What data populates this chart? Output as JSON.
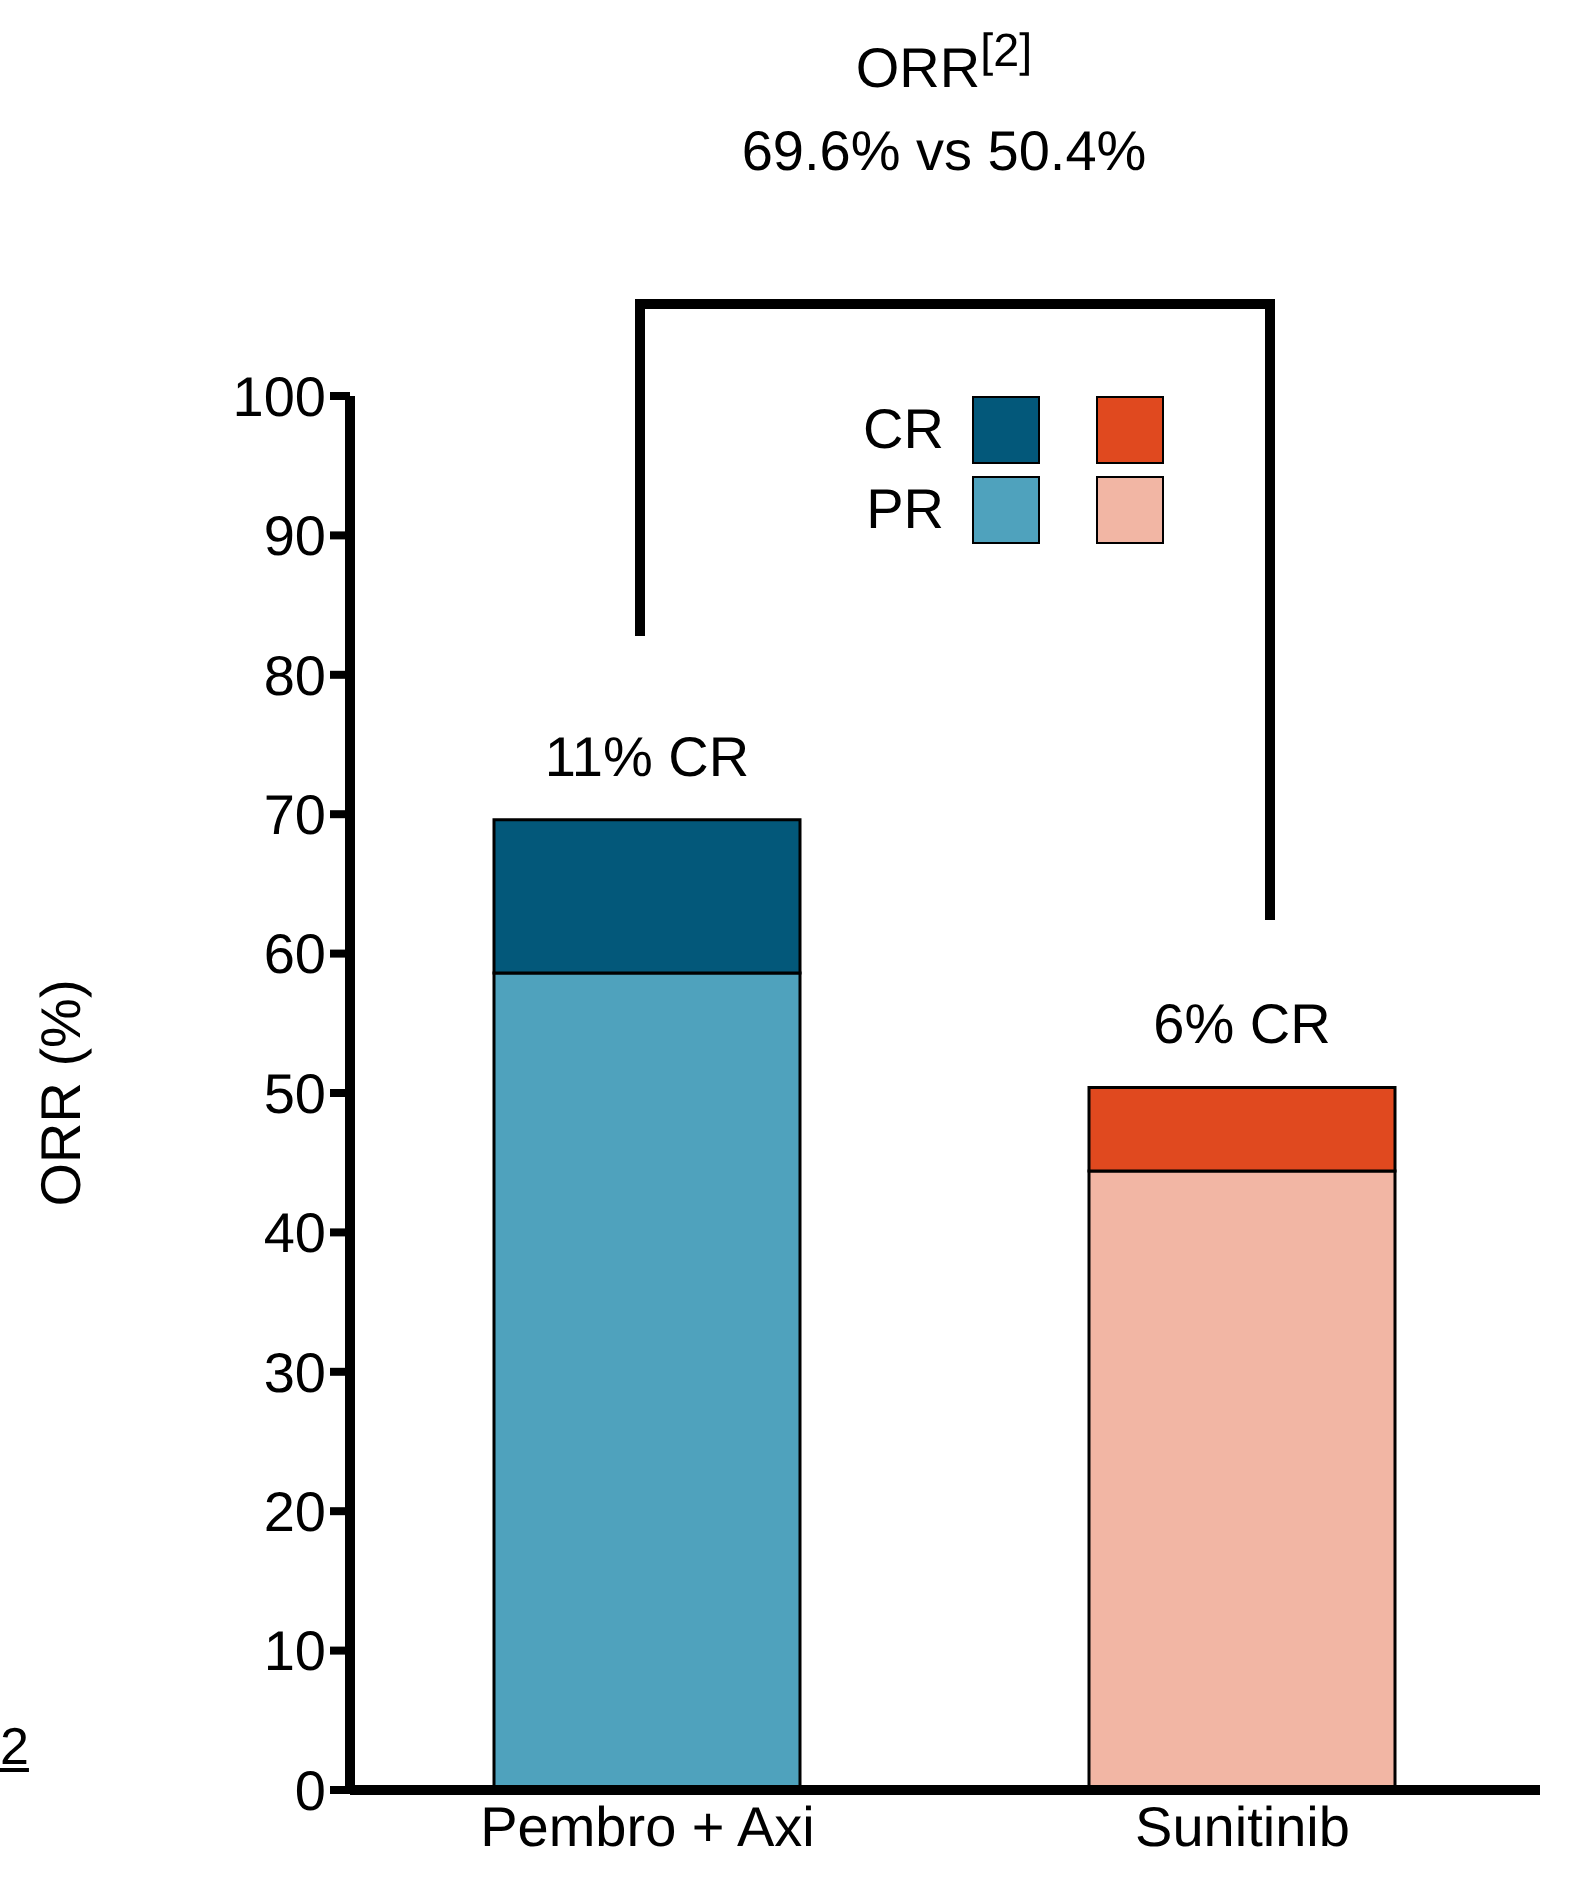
{
  "chart_data": {
    "type": "bar",
    "stacked": true,
    "ylabel": "ORR (%)",
    "categories": [
      "Pembro + Axi",
      "Sunitinib"
    ],
    "series": [
      {
        "name": "PR",
        "colors": [
          "#4fa2bd",
          "#f2b6a4"
        ],
        "values": [
          58.6,
          44.4
        ]
      },
      {
        "name": "CR",
        "colors": [
          "#03587a",
          "#e0491f"
        ],
        "values": [
          11,
          6
        ],
        "value_labels": [
          "11% CR",
          "6% CR"
        ]
      }
    ],
    "ylim": [
      0,
      100
    ],
    "yticks": [
      0,
      10,
      20,
      30,
      40,
      50,
      60,
      70,
      80,
      90,
      100
    ],
    "grid": false,
    "legend": "top right",
    "annotations": [
      "ORR$^{[2]}$",
      "69.6% vs 50.4%",
      "2"
    ]
  }
}
